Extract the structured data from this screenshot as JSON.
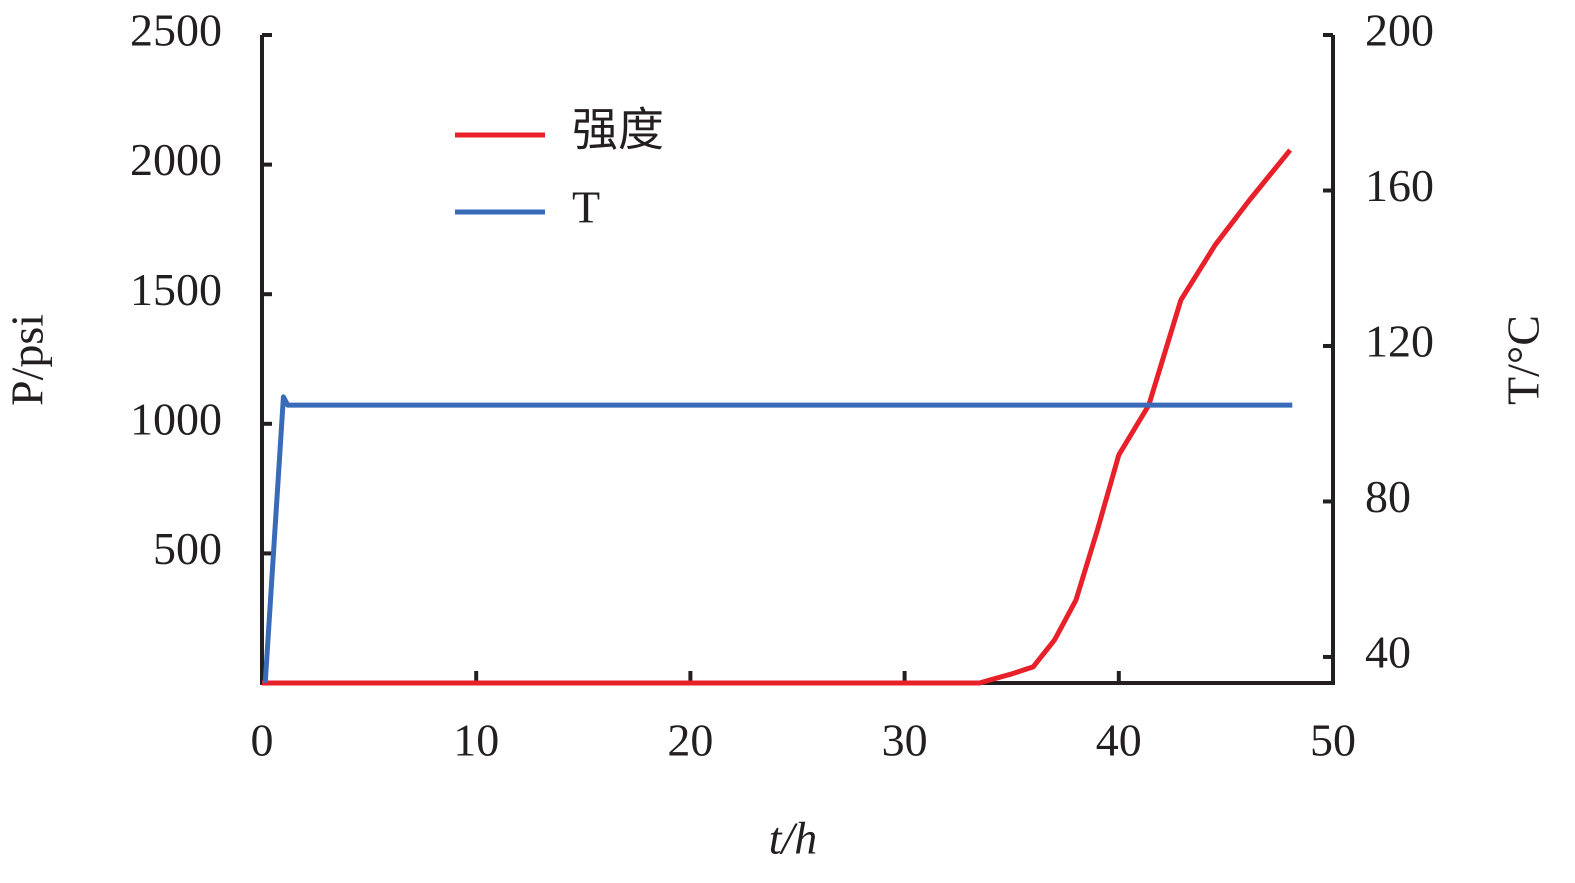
{
  "chart_data": {
    "type": "line",
    "xlabel": "t/h",
    "ylabel": "P/psi",
    "y2label": "T/°C",
    "xlim": [
      0,
      50
    ],
    "xticks": [
      0,
      10,
      20,
      30,
      40,
      50
    ],
    "ylim": [
      0,
      2500
    ],
    "yticks": [
      500,
      1000,
      1500,
      2000,
      2500
    ],
    "y2lim": [
      33.3,
      200
    ],
    "y2ticks": [
      40,
      80,
      120,
      160,
      200
    ],
    "legend": "upper-left",
    "series": [
      {
        "name": "强度",
        "color": "#e8202a",
        "x": [
          0,
          33.5,
          34,
          35,
          36,
          37,
          38,
          39,
          40,
          41.4,
          42.9,
          44.5,
          46.1,
          48
        ],
        "values": [
          0,
          0,
          12,
          35,
          62,
          166,
          320,
          590,
          880,
          1072,
          1478,
          1690,
          1863,
          2056
        ]
      },
      {
        "name": "T",
        "color": "#3a6bb8",
        "axis": "y2",
        "x": [
          0.15,
          1.0,
          1.2,
          48.1
        ],
        "values": [
          33.3,
          106.9,
          104.8,
          104.8
        ]
      }
    ]
  }
}
